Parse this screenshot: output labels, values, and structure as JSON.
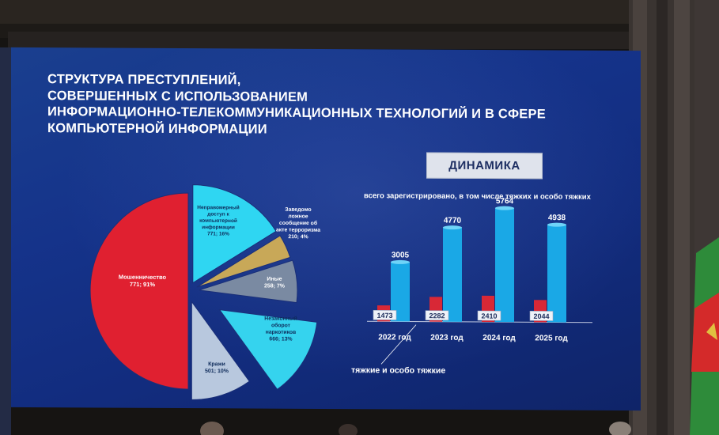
{
  "slide": {
    "title_lines": [
      "СТРУКТУРА ПРЕСТУПЛЕНИЙ,",
      "СОВЕРШЕННЫХ С ИСПОЛЬЗОВАНИЕМ",
      "ИНФОРМАЦИОННО-ТЕЛЕКОММУНИКАЦИОННЫХ ТЕХНОЛОГИЙ И В СФЕРЕ",
      "КОМПЬЮТЕРНОЙ ИНФОРМАЦИИ"
    ],
    "dynamics_label": "ДИНАМИКА",
    "subtitle": "всего зарегистрировано, в том числе тяжких и особо тяжких",
    "legend_note": "тяжкие и особо тяжкие"
  },
  "colors": {
    "fraud": "#e02030",
    "illegal_access": "#2fd6f2",
    "false_terror": "#c8a858",
    "other": "#7a8aa2",
    "drugs": "#35d3ee",
    "theft": "#b8c8de",
    "bar_total": "#1aa8e6",
    "bar_grave": "#d82836"
  },
  "chart_data": [
    {
      "type": "pie",
      "title": "",
      "slices": [
        {
          "label_lines": [
            "Мошенничество",
            "771; 91%"
          ],
          "value": 91,
          "color_key": "fraud"
        },
        {
          "label_lines": [
            "Неправомерный",
            "доступ к",
            "компьютерной",
            "информации",
            "771; 16%"
          ],
          "value": 16,
          "color_key": "illegal_access"
        },
        {
          "label_lines": [
            "Заведомо",
            "ложное",
            "сообщение об",
            "акте терроризма",
            "210; 4%"
          ],
          "value": 4,
          "color_key": "false_terror"
        },
        {
          "label_lines": [
            "Иные",
            "258; 7%"
          ],
          "value": 7,
          "color_key": "other"
        },
        {
          "label_lines": [
            "Незаконный",
            "оборот",
            "наркотиков",
            "666; 13%"
          ],
          "value": 13,
          "color_key": "drugs"
        },
        {
          "label_lines": [
            "Кражи",
            "501; 10%"
          ],
          "value": 10,
          "color_key": "theft"
        }
      ]
    },
    {
      "type": "bar",
      "title": "всего зарегистрировано, в том числе тяжких и особо тяжких",
      "categories": [
        "2022 год",
        "2023 год",
        "2024 год",
        "2025 год"
      ],
      "series": [
        {
          "values": [
            3005,
            4770,
            5764,
            4938
          ],
          "color_key": "bar_total"
        },
        {
          "name": "тяжкие и особо тяжкие",
          "values": [
            1473,
            2282,
            2410,
            2044
          ],
          "color_key": "bar_grave"
        }
      ]
    }
  ]
}
